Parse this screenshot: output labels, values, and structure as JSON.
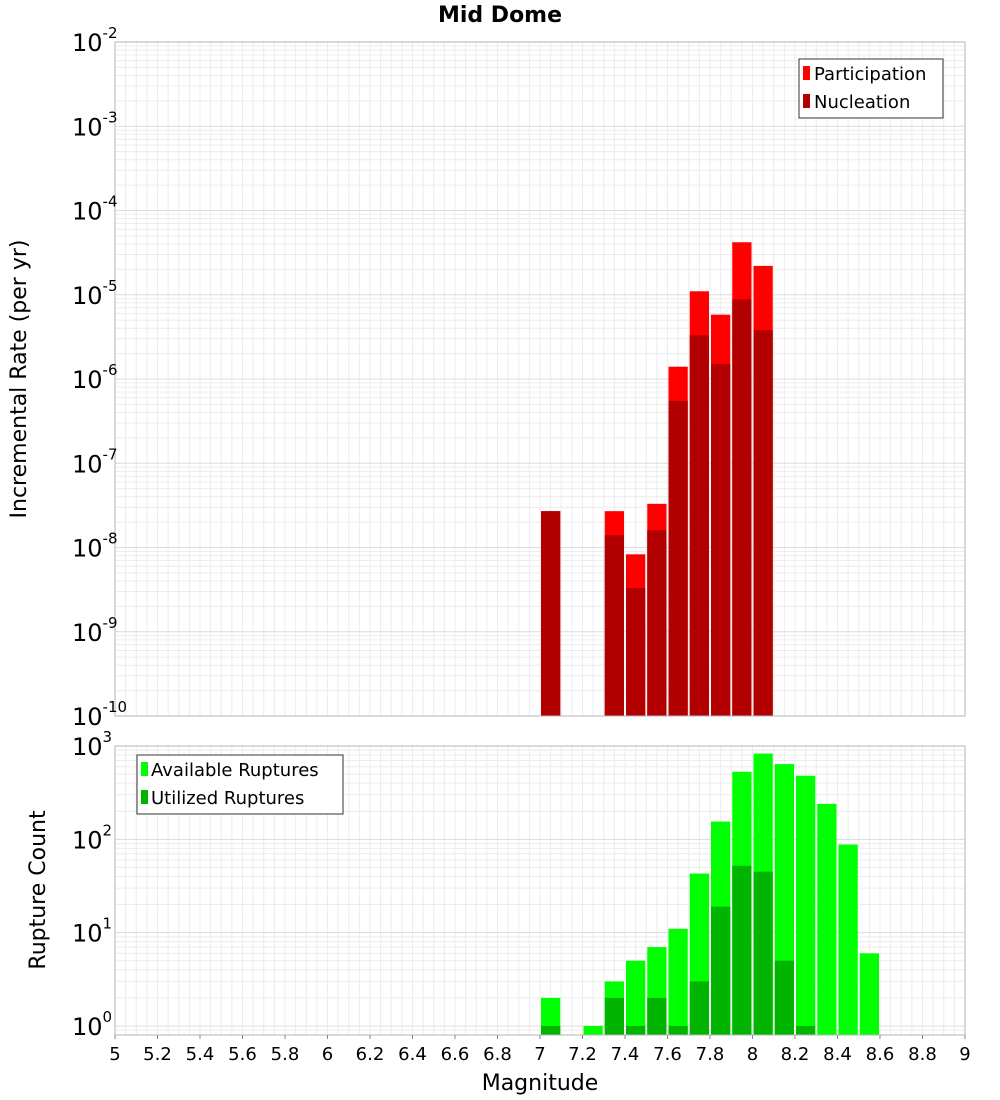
{
  "chart_data": [
    {
      "type": "bar",
      "title": "Mid Dome",
      "xlabel": "",
      "ylabel": "Incremental Rate (per yr)",
      "xlim": [
        5,
        9
      ],
      "ylim": [
        1e-10,
        0.01
      ],
      "yscale": "log",
      "grid": true,
      "legend_position": "top-right",
      "y_tick_labels": [
        {
          "base": "10",
          "exp": "-10"
        },
        {
          "base": "10",
          "exp": "-9"
        },
        {
          "base": "10",
          "exp": "-8"
        },
        {
          "base": "10",
          "exp": "-7"
        },
        {
          "base": "10",
          "exp": "-6"
        },
        {
          "base": "10",
          "exp": "-5"
        },
        {
          "base": "10",
          "exp": "-4"
        },
        {
          "base": "10",
          "exp": "-3"
        },
        {
          "base": "10",
          "exp": "-2"
        }
      ],
      "x": [
        7.05,
        7.35,
        7.45,
        7.55,
        7.65,
        7.75,
        7.85,
        7.95,
        8.05
      ],
      "series": [
        {
          "name": "Participation",
          "color": "#ff0000",
          "values": [
            2.7e-08,
            2.7e-08,
            8.3e-09,
            3.3e-08,
            1.4e-06,
            1.1e-05,
            5.8e-06,
            4.2e-05,
            2.2e-05
          ]
        },
        {
          "name": "Nucleation",
          "color": "#b20000",
          "values": [
            2.7e-08,
            1.4e-08,
            3.3e-09,
            1.6e-08,
            5.5e-07,
            3.3e-06,
            1.5e-06,
            8.8e-06,
            3.8e-06
          ]
        }
      ]
    },
    {
      "type": "bar",
      "title": "",
      "xlabel": "Magnitude",
      "ylabel": "Rupture Count",
      "xlim": [
        5,
        9
      ],
      "ylim": [
        0.8,
        1000
      ],
      "yscale": "log",
      "grid": true,
      "legend_position": "top-left",
      "y_tick_labels": [
        {
          "base": "10",
          "exp": "0"
        },
        {
          "base": "10",
          "exp": "1"
        },
        {
          "base": "10",
          "exp": "2"
        },
        {
          "base": "10",
          "exp": "3"
        }
      ],
      "x_tick_labels": [
        "5",
        "5.2",
        "5.4",
        "5.6",
        "5.8",
        "6",
        "6.2",
        "6.4",
        "6.6",
        "6.8",
        "7",
        "7.2",
        "7.4",
        "7.6",
        "7.8",
        "8",
        "8.2",
        "8.4",
        "8.6",
        "8.8",
        "9"
      ],
      "x": [
        7.05,
        7.25,
        7.35,
        7.45,
        7.55,
        7.65,
        7.75,
        7.85,
        7.95,
        8.05,
        8.15,
        8.25,
        8.35,
        8.45,
        8.55
      ],
      "series": [
        {
          "name": "Available Ruptures",
          "color": "#00ff00",
          "values": [
            2,
            1,
            3,
            5,
            7,
            11,
            43,
            155,
            530,
            830,
            640,
            480,
            240,
            88,
            6
          ]
        },
        {
          "name": "Utilized Ruptures",
          "color": "#00b400",
          "values": [
            1,
            null,
            2,
            1,
            2,
            1,
            3,
            19,
            52,
            45,
            5,
            1,
            null,
            null,
            null
          ]
        }
      ]
    }
  ]
}
